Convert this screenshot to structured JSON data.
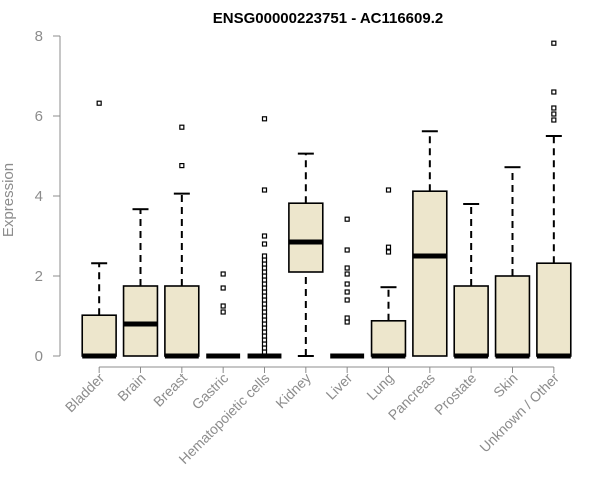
{
  "chart_data": {
    "type": "boxplot",
    "title": "ENSG00000223751 - AC116609.2",
    "ylabel": "Expression",
    "xlabel": "",
    "ylim": [
      0,
      8
    ],
    "yticks": [
      0,
      2,
      4,
      6,
      8
    ],
    "grid": false,
    "legend": "none",
    "box_fill": "#ede6cc",
    "box_stroke": "#000000",
    "axis_color": "#8c8c8c",
    "categories": [
      "Bladder",
      "Brain",
      "Breast",
      "Gastric",
      "Hematopoietic cells",
      "Kidney",
      "Liver",
      "Lung",
      "Pancreas",
      "Prostate",
      "Skin",
      "Unknown / Other"
    ],
    "boxes": [
      {
        "name": "Bladder",
        "q1": 0,
        "median": 0,
        "q3": 1.02,
        "whisker_low": 0,
        "whisker_high": 2.32,
        "outliers": [
          6.32
        ]
      },
      {
        "name": "Brain",
        "q1": 0,
        "median": 0.8,
        "q3": 1.75,
        "whisker_low": 0,
        "whisker_high": 3.67,
        "outliers": []
      },
      {
        "name": "Breast",
        "q1": 0,
        "median": 0,
        "q3": 1.75,
        "whisker_low": 0,
        "whisker_high": 4.06,
        "outliers": [
          4.76,
          5.72
        ]
      },
      {
        "name": "Gastric",
        "q1": 0,
        "median": 0,
        "q3": 0,
        "whisker_low": 0,
        "whisker_high": 0,
        "outliers": [
          1.1,
          1.25,
          1.7,
          2.05
        ]
      },
      {
        "name": "Hematopoietic cells",
        "q1": 0,
        "median": 0,
        "q3": 0,
        "whisker_low": 0,
        "whisker_high": 0,
        "outliers": [
          0.1,
          0.2,
          0.3,
          0.4,
          0.5,
          0.6,
          0.7,
          0.8,
          0.9,
          1.0,
          1.1,
          1.2,
          1.3,
          1.4,
          1.5,
          1.6,
          1.7,
          1.8,
          1.9,
          2.0,
          2.1,
          2.2,
          2.3,
          2.4,
          2.5,
          2.8,
          3.0,
          4.15,
          5.93
        ]
      },
      {
        "name": "Kidney",
        "q1": 2.1,
        "median": 2.85,
        "q3": 3.82,
        "whisker_low": 0,
        "whisker_high": 5.06,
        "outliers": []
      },
      {
        "name": "Liver",
        "q1": 0,
        "median": 0,
        "q3": 0,
        "whisker_low": 0,
        "whisker_high": 0,
        "outliers": [
          0.85,
          0.95,
          1.4,
          1.6,
          1.8,
          2.05,
          2.2,
          2.65,
          3.42
        ]
      },
      {
        "name": "Lung",
        "q1": 0,
        "median": 0,
        "q3": 0.88,
        "whisker_low": 0,
        "whisker_high": 1.72,
        "outliers": [
          2.6,
          2.72,
          4.15
        ]
      },
      {
        "name": "Pancreas",
        "q1": 0,
        "median": 2.5,
        "q3": 4.12,
        "whisker_low": 0,
        "whisker_high": 5.62,
        "outliers": []
      },
      {
        "name": "Prostate",
        "q1": 0,
        "median": 0,
        "q3": 1.75,
        "whisker_low": 0,
        "whisker_high": 3.8,
        "outliers": []
      },
      {
        "name": "Skin",
        "q1": 0,
        "median": 0,
        "q3": 2.0,
        "whisker_low": 0,
        "whisker_high": 4.72,
        "outliers": []
      },
      {
        "name": "Unknown / Other",
        "q1": 0,
        "median": 0,
        "q3": 2.32,
        "whisker_low": 0,
        "whisker_high": 5.5,
        "outliers": [
          5.9,
          6.05,
          6.2,
          6.6,
          7.82
        ]
      }
    ]
  }
}
